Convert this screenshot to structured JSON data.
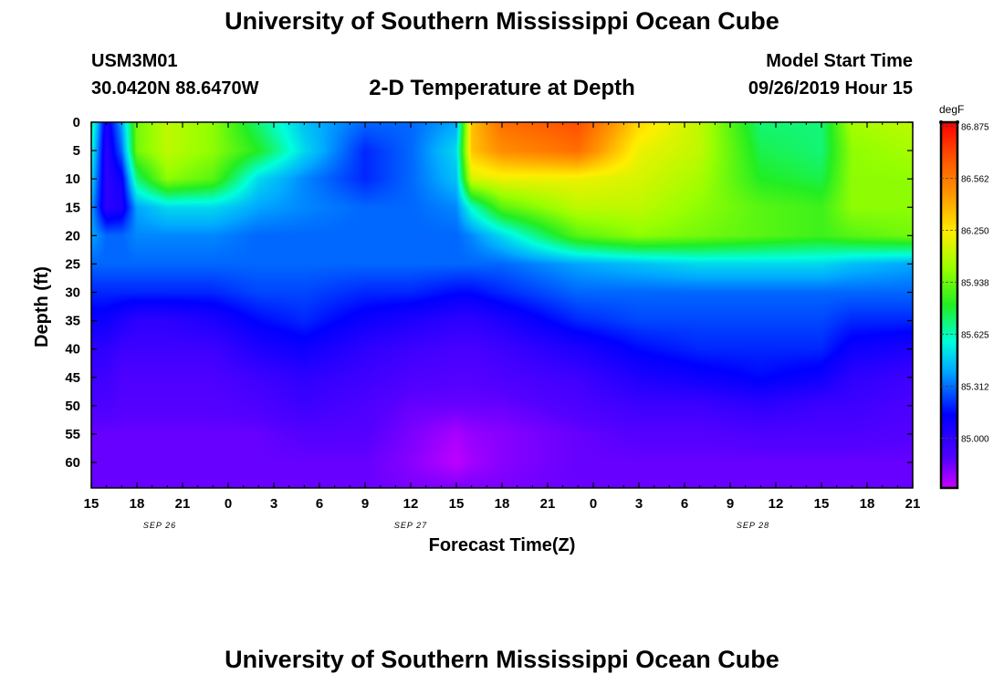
{
  "header": {
    "title": "University of Southern Mississippi Ocean Cube",
    "station_id": "USM3M01",
    "location": "30.0420N 88.6470W",
    "start_label": "Model Start Time",
    "start_value": "09/26/2019 Hour 15"
  },
  "footer": {
    "title": "University of Southern Mississippi Ocean Cube"
  },
  "chart_data": {
    "type": "heatmap",
    "title": "2-D Temperature at Depth",
    "xlabel": "Forecast Time(Z)",
    "ylabel": "Depth (ft)",
    "x_ticks": [
      "15",
      "18",
      "21",
      "0",
      "3",
      "6",
      "9",
      "12",
      "15",
      "18",
      "21",
      "0",
      "3",
      "6",
      "9",
      "12",
      "15",
      "18",
      "21"
    ],
    "x_hours_from_start": [
      0,
      3,
      6,
      9,
      12,
      15,
      18,
      21,
      24,
      27,
      30,
      33,
      36,
      39,
      42,
      45,
      48,
      51,
      54
    ],
    "date_labels": [
      {
        "label": "SEP 26",
        "hour": 4.5
      },
      {
        "label": "SEP 27",
        "hour": 21
      },
      {
        "label": "SEP 28",
        "hour": 43.5
      }
    ],
    "y_ticks": [
      0,
      5,
      10,
      15,
      20,
      25,
      30,
      35,
      40,
      45,
      50,
      55,
      60
    ],
    "ylim": [
      0,
      64.5
    ],
    "xlim": [
      0,
      54
    ],
    "colorbar": {
      "unit": "degF",
      "ticks": [
        "86.875",
        "86.562",
        "86.250",
        "85.938",
        "85.625",
        "85.312",
        "85.000"
      ],
      "range": [
        84.7,
        86.9
      ]
    },
    "field_approx": {
      "times": [
        0,
        1,
        2,
        3,
        5,
        8,
        11,
        14,
        18,
        21,
        24,
        25,
        27,
        32,
        36,
        40,
        44,
        48,
        50,
        54
      ],
      "depths": [
        0,
        5,
        10,
        15,
        20,
        25,
        30,
        35,
        40,
        45,
        50,
        55,
        60,
        64.5
      ],
      "values": [
        [
          85.7,
          85.6,
          85.5,
          85.4,
          85.4,
          85.3,
          85.2,
          85.1,
          85.0,
          84.95,
          84.9,
          84.85,
          84.85,
          84.85
        ],
        [
          85.05,
          85.0,
          85.0,
          85.0,
          85.3,
          85.3,
          85.2,
          85.1,
          85.0,
          84.95,
          84.9,
          84.85,
          84.85,
          84.85
        ],
        [
          85.4,
          85.3,
          85.1,
          85.05,
          85.3,
          85.3,
          85.2,
          85.05,
          84.95,
          84.9,
          84.88,
          84.85,
          84.85,
          84.85
        ],
        [
          85.95,
          85.95,
          85.7,
          85.4,
          85.35,
          85.3,
          85.2,
          85.0,
          84.95,
          84.9,
          84.88,
          84.85,
          84.85,
          84.85
        ],
        [
          86.1,
          86.1,
          86.0,
          85.5,
          85.35,
          85.3,
          85.2,
          85.0,
          84.95,
          84.9,
          84.88,
          84.85,
          84.85,
          84.85
        ],
        [
          86.0,
          86.0,
          85.9,
          85.5,
          85.35,
          85.3,
          85.2,
          85.05,
          84.95,
          84.9,
          84.88,
          84.85,
          84.85,
          84.85
        ],
        [
          85.7,
          85.8,
          85.5,
          85.4,
          85.3,
          85.3,
          85.25,
          85.15,
          85.05,
          84.95,
          84.9,
          84.85,
          84.85,
          84.85
        ],
        [
          85.45,
          85.5,
          85.35,
          85.35,
          85.3,
          85.3,
          85.25,
          85.2,
          85.1,
          85.0,
          84.95,
          84.88,
          84.85,
          84.85
        ],
        [
          85.3,
          85.2,
          85.2,
          85.3,
          85.3,
          85.3,
          85.2,
          85.1,
          85.0,
          84.95,
          84.9,
          84.88,
          84.85,
          84.85
        ],
        [
          85.3,
          85.3,
          85.3,
          85.3,
          85.3,
          85.3,
          85.2,
          85.05,
          84.95,
          84.9,
          84.85,
          84.82,
          84.8,
          84.82
        ],
        [
          85.4,
          85.5,
          85.45,
          85.35,
          85.3,
          85.3,
          85.15,
          85.0,
          84.92,
          84.88,
          84.85,
          84.75,
          84.72,
          84.82
        ],
        [
          86.35,
          86.35,
          86.15,
          85.6,
          85.35,
          85.3,
          85.15,
          85.0,
          84.92,
          84.88,
          84.85,
          84.78,
          84.76,
          84.82
        ],
        [
          86.6,
          86.5,
          86.2,
          85.9,
          85.5,
          85.3,
          85.2,
          85.05,
          84.95,
          84.9,
          84.85,
          84.8,
          84.8,
          84.82
        ],
        [
          86.7,
          86.6,
          86.2,
          86.1,
          85.9,
          85.4,
          85.3,
          85.2,
          85.05,
          84.95,
          84.9,
          84.85,
          84.85,
          84.85
        ],
        [
          86.3,
          86.2,
          86.15,
          86.1,
          86.0,
          85.45,
          85.3,
          85.25,
          85.15,
          85.05,
          84.95,
          84.88,
          84.85,
          84.85
        ],
        [
          86.1,
          86.1,
          86.05,
          86.0,
          85.95,
          85.5,
          85.3,
          85.25,
          85.2,
          85.1,
          84.95,
          84.88,
          84.85,
          84.85
        ],
        [
          85.7,
          85.75,
          85.8,
          85.9,
          85.9,
          85.5,
          85.3,
          85.25,
          85.2,
          85.15,
          85.0,
          84.9,
          84.85,
          84.85
        ],
        [
          85.7,
          85.7,
          85.75,
          85.85,
          85.85,
          85.5,
          85.3,
          85.25,
          85.2,
          85.1,
          84.95,
          84.9,
          84.85,
          84.85
        ],
        [
          86.05,
          86.0,
          86.0,
          86.0,
          85.9,
          85.45,
          85.3,
          85.2,
          85.1,
          85.0,
          84.95,
          84.9,
          84.85,
          84.85
        ],
        [
          86.1,
          86.05,
          86.0,
          86.0,
          85.95,
          85.4,
          85.3,
          85.2,
          85.05,
          84.95,
          84.9,
          84.88,
          84.85,
          84.85
        ]
      ]
    }
  }
}
